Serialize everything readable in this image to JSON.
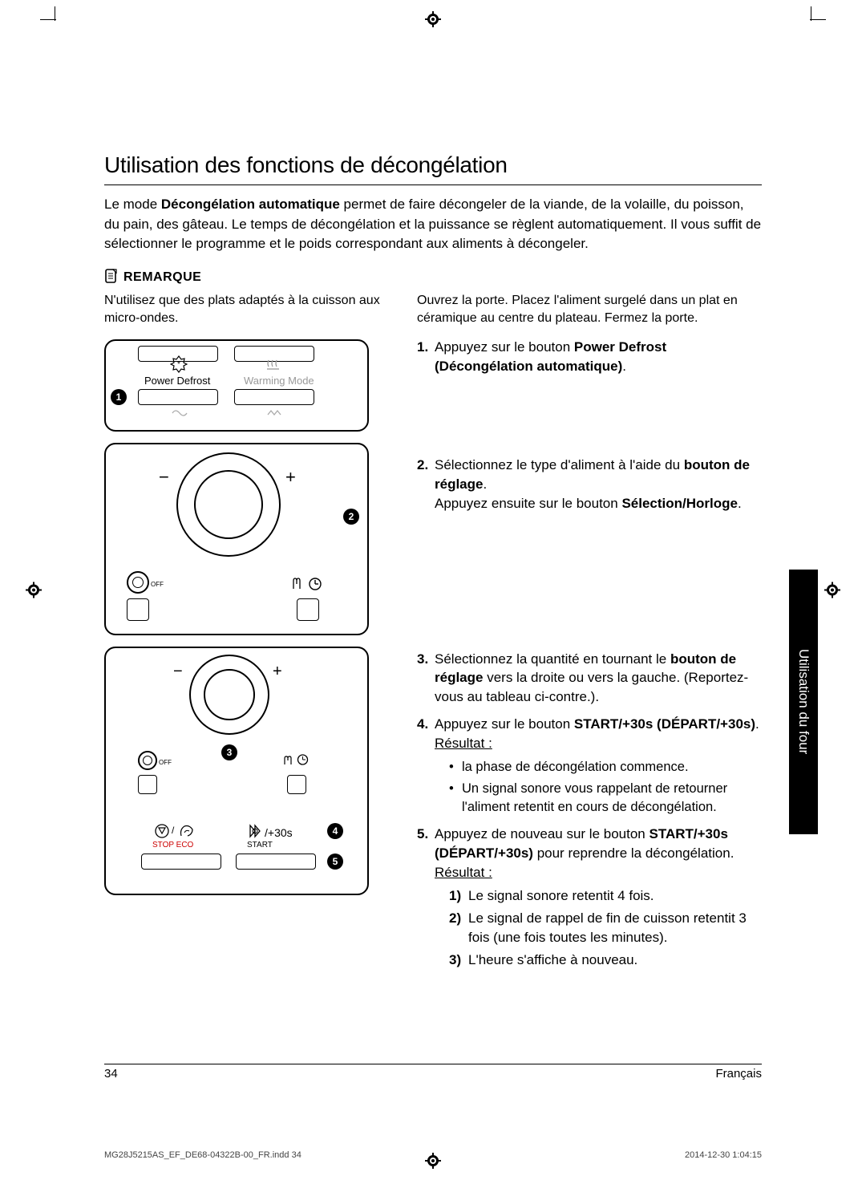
{
  "page": {
    "title": "Utilisation des fonctions de décongélation",
    "intro_html": "Le mode <b>Décongélation automatique</b> permet de faire décongeler de la viande, de la volaille, du poisson, du pain, des gâteau. Le temps de décongélation et la puissance se règlent automatiquement. Il vous suffit de sélectionner le programme et le poids correspondant aux aliments à décongeler.",
    "remarque_label": "REMARQUE",
    "remarque_text": "N'utilisez que des plats adaptés à la cuisson aux micro-ondes.",
    "right_intro": "Ouvrez la porte. Placez l'aliment surgelé dans un plat en céramique au centre du plateau. Fermez la porte.",
    "steps": {
      "s1": "Appuyez sur le bouton <b>Power Defrost (Décongélation automatique)</b>.",
      "s2": "Sélectionnez le type d'aliment à l'aide du <b>bouton de réglage</b>.<br>Appuyez ensuite sur le bouton <b>Sélection/Horloge</b>.",
      "s3": "Sélectionnez la quantité en tournant le <b>bouton de réglage</b> vers la droite ou vers la gauche. (Reportez-vous au tableau ci-contre.).",
      "s4": "Appuyez sur le bouton <b>START/+30s (DÉPART/+30s)</b>. <span class='u'>Résultat :</span>",
      "s4_b1": "la phase de décongélation commence.",
      "s4_b2": "Un signal sonore vous rappelant de retourner l'aliment retentit en cours de décongélation.",
      "s5": "Appuyez de nouveau sur le bouton <b>START/+30s (DÉPART/+30s)</b> pour reprendre la décongélation. <span class='u'>Résultat :</span>",
      "s5_1": "Le signal sonore retentit 4 fois.",
      "s5_2": "Le signal de rappel de fin de cuisson retentit 3 fois (une fois toutes les minutes).",
      "s5_3": "L'heure s'affiche à nouveau."
    },
    "panel_labels": {
      "power_defrost": "Power Defrost",
      "warming_mode": "Warming Mode",
      "off": "OFF",
      "stop_eco": "STOP  ECO",
      "start": "START",
      "plus30s": "/+30s"
    },
    "callouts": {
      "c1": "1",
      "c2": "2",
      "c3": "3",
      "c4": "4",
      "c5": "5"
    },
    "side_tab": "Utilisation du four",
    "footer": {
      "pagenum": "34",
      "lang": "Français"
    },
    "imprint": {
      "file": "MG28J5215AS_EF_DE68-04322B-00_FR.indd   34",
      "ts": "2014-12-30   1:04:15"
    }
  }
}
